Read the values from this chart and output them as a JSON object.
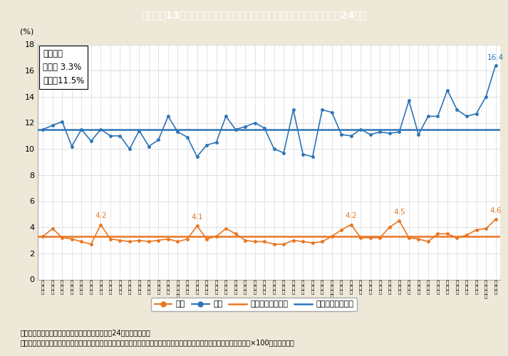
{
  "title": "Ｉ－特－13図　都道府県別有業者に占める起業者の割合（男女別，平成24年）",
  "ylabel": "(%)",
  "ylim": [
    0,
    18
  ],
  "yticks": [
    0,
    2,
    4,
    6,
    8,
    10,
    12,
    14,
    16,
    18
  ],
  "avg_female": 3.3,
  "avg_male": 11.5,
  "legend_box_text": "全国平均\n女性　 3.3%\n男性　11.5%",
  "bg_color": "#ede8d8",
  "plot_bg_color": "#ffffff",
  "title_bg_color": "#5b9bd5",
  "title_text_color": "#ffffff",
  "female_color": "#e87722",
  "male_color": "#2e75b6",
  "categories": [
    "全\n国\n計",
    "北\n海\n道",
    "青\n森\n県",
    "岩\n手\n県",
    "宮\n城\n県",
    "秋\n田\n県",
    "山\n形\n県",
    "福\n島\n県",
    "茨\n城\n県",
    "栃\n木\n県",
    "群\n馬\n県",
    "埼\n玉\n県",
    "千\n葉\n県",
    "東\n京\n都",
    "神\n奈\n川\n県",
    "新\n潟\n県",
    "富\n山\n県",
    "石\n川\n県",
    "福\n井\n県",
    "山\n梨\n県",
    "長\n野\n県",
    "岐\n阜\n県",
    "静\n岡\n県",
    "愛\n知\n県",
    "三\n重\n県",
    "滋\n賀\n県",
    "京\n都\n府",
    "大\n阪\n府",
    "兵\n庫\n県",
    "奈\n良\n県",
    "和\n歌\n山\n県",
    "鳥\n取\n県",
    "島\n根\n県",
    "岡\n山\n県",
    "広\n島\n県",
    "山\n口\n県",
    "徳\n島\n県",
    "香\n川\n県",
    "愛\n媛\n県",
    "高\n知\n県",
    "福\n岡\n県",
    "佐\n賀\n県",
    "長\n崎\n県",
    "熊\n本\n県",
    "大\n分\n県",
    "宮\n崎\n県",
    "鹿\n児\n島\n県",
    "沖\n縄\n県"
  ],
  "female_data": [
    3.3,
    3.9,
    3.2,
    3.1,
    2.9,
    2.7,
    4.2,
    3.1,
    3.0,
    2.9,
    3.0,
    2.9,
    3.0,
    3.1,
    2.9,
    3.1,
    4.1,
    3.1,
    3.3,
    3.9,
    3.5,
    3.0,
    2.9,
    2.9,
    2.7,
    2.7,
    3.0,
    2.9,
    2.8,
    2.9,
    3.3,
    3.8,
    4.2,
    3.2,
    3.2,
    3.2,
    4.0,
    4.5,
    3.2,
    3.1,
    2.9,
    3.5,
    3.5,
    3.2,
    3.4,
    3.8,
    3.9,
    4.6
  ],
  "male_data": [
    11.5,
    11.8,
    12.1,
    10.2,
    11.5,
    10.6,
    11.5,
    11.0,
    11.0,
    10.0,
    11.4,
    10.2,
    10.7,
    12.5,
    11.3,
    10.9,
    9.4,
    10.3,
    10.5,
    12.5,
    11.5,
    11.7,
    12.0,
    11.6,
    10.0,
    9.7,
    13.0,
    9.6,
    9.4,
    13.0,
    12.8,
    11.1,
    11.0,
    11.5,
    11.1,
    11.3,
    11.2,
    11.3,
    13.7,
    11.1,
    12.5,
    12.5,
    14.5,
    13.0,
    12.5,
    12.7,
    14.0,
    16.4
  ],
  "annotate_female_indices": [
    6,
    16,
    32,
    37,
    47
  ],
  "annotate_male_indices": [
    47
  ],
  "footnote1": "（備考）１．総務省「就業構造基本調査」（平成24年）より作成。",
  "footnote2": "　　　　２．起業者の割合は，（「自営業主」のうち「起業者」＋「会社などの役員」のうち「起業者」）／「有業者数」×100により算出。"
}
